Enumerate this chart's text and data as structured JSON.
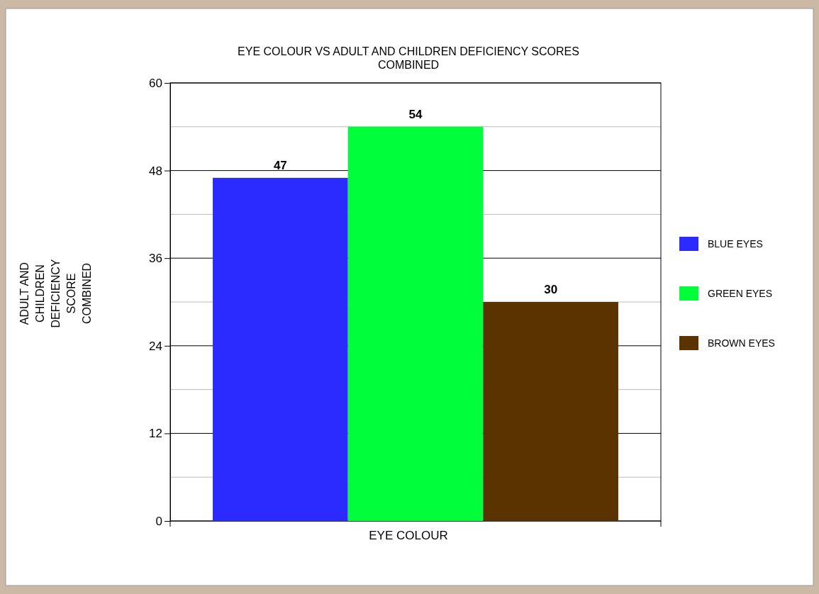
{
  "chart_data": {
    "type": "bar",
    "title": "EYE COLOUR VS ADULT AND CHILDREN DEFICIENCY SCORES COMBINED",
    "xlabel": "EYE COLOUR",
    "ylabel": "ADULT AND CHILDREN DEFICIENCY SCORE COMBINED",
    "categories": [
      null
    ],
    "series": [
      {
        "name": "BLUE EYES",
        "color": "#2b2bff",
        "values": [
          47
        ]
      },
      {
        "name": "GREEN EYES",
        "color": "#00ff3a",
        "values": [
          54
        ]
      },
      {
        "name": "BROWN EYES",
        "color": "#5a3300",
        "values": [
          30
        ]
      }
    ],
    "ylim": [
      0,
      60
    ],
    "yticks": [
      0,
      {
        "value": 6,
        "label": null
      },
      12,
      {
        "value": 18,
        "label": null
      },
      24,
      {
        "value": 30,
        "label": null
      },
      36,
      {
        "value": 42,
        "label": null
      },
      48,
      {
        "value": 54,
        "label": null
      },
      60
    ],
    "grid": "y",
    "legend": "right",
    "data_labels": true
  }
}
